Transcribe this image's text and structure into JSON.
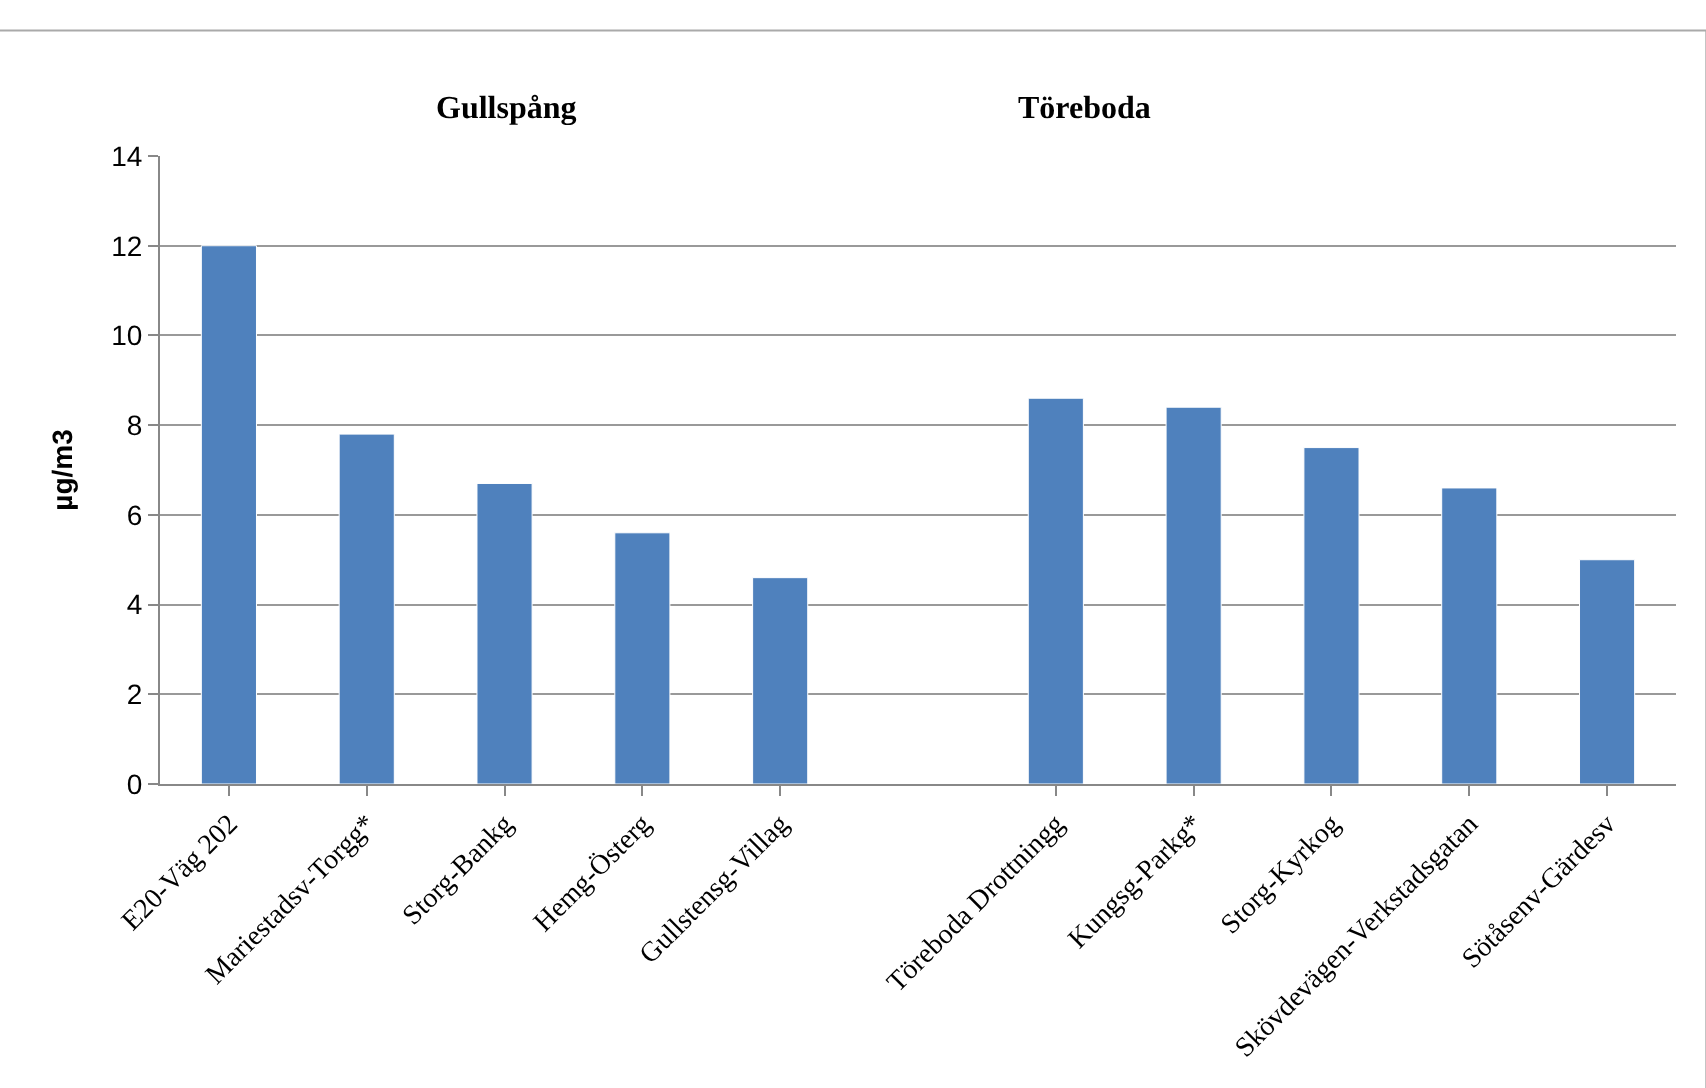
{
  "chart_data": {
    "type": "bar",
    "ylabel": "µg/m3",
    "annotations": [
      "Gullspång",
      "Töreboda"
    ],
    "categories": [
      "E20-Väg 202",
      "Mariestadsv-Torgg*",
      "Storg-Bankg",
      "Hemg-Österg",
      "Gullstensg-Villag",
      null,
      "Töreboda Drottningg",
      "Kungsg-Parkg*",
      "Storg-Kyrkog",
      "Skövdevägen-Verkstadsgatan",
      "Sötåsenv-Gärdesv"
    ],
    "values": [
      12.0,
      7.8,
      6.7,
      5.6,
      4.6,
      null,
      8.6,
      8.4,
      7.5,
      6.6,
      5.0
    ],
    "color": "#4f81bd",
    "ylim": [
      0,
      14
    ],
    "yticks": [
      0,
      2,
      4,
      6,
      8,
      10,
      12,
      14
    ],
    "grid": "y"
  }
}
